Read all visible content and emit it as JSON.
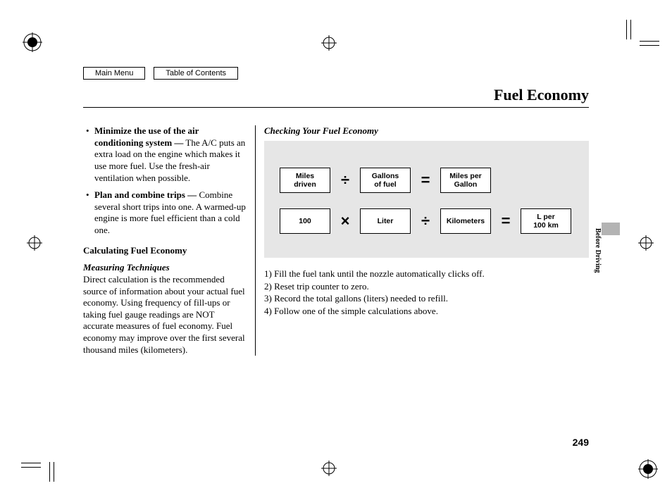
{
  "nav": {
    "main_menu": "Main Menu",
    "toc": "Table of Contents"
  },
  "title": "Fuel Economy",
  "left_column": {
    "bullets": [
      {
        "bold": "Minimize the use of the air conditioning system —",
        "rest": " The A/C puts an extra load on the engine which makes it use more fuel. Use the fresh-air ventilation when possible."
      },
      {
        "bold": "Plan and combine trips —",
        "rest": " Combine several short trips into one. A warmed-up engine is more fuel efficient than a cold one."
      }
    ],
    "calc_heading": "Calculating Fuel Economy",
    "measuring_heading": "Measuring Techniques",
    "measuring_body": "Direct calculation is the recommended source of information about your actual fuel economy. Using frequency of fill-ups or taking fuel gauge readings are NOT accurate measures of fuel economy. Fuel economy may improve over the first several thousand miles (kilometers)."
  },
  "right_column": {
    "checking_heading": "Checking Your Fuel Economy",
    "formulas": {
      "row1": {
        "boxes": [
          "Miles\ndriven",
          "Gallons\nof fuel",
          "Miles per\nGallon"
        ],
        "ops": [
          "÷",
          "="
        ]
      },
      "row2": {
        "boxes": [
          "100",
          "Liter",
          "Kilometers",
          "L per\n100 km"
        ],
        "ops": [
          "×",
          "÷",
          "="
        ]
      },
      "panel_bg": "#e6e6e6",
      "box_border": "#000000",
      "box_bg": "#ffffff",
      "box_font_size_pt": 8,
      "op_font_size_pt": 16
    },
    "steps": [
      "1) Fill the fuel tank until the nozzle automatically clicks off.",
      "2) Reset trip counter to zero.",
      "3) Record the total gallons (liters) needed to refill.",
      "4) Follow one of the simple calculations above."
    ]
  },
  "side_label": "Before Driving",
  "side_tab_color": "#b3b3b3",
  "page_number": "249",
  "page_bg": "#ffffff"
}
